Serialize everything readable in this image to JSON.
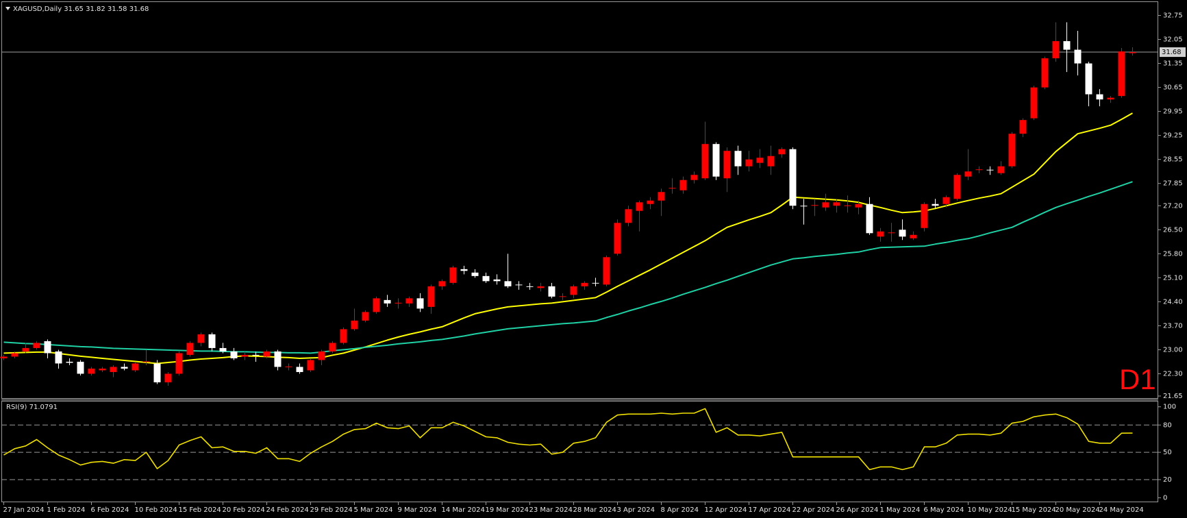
{
  "chart_data": [
    {
      "type": "candlestick",
      "title": "XAGUSD,Daily  31.65 31.82 31.58 31.68",
      "annotation": "D1",
      "up_color": "#ff0000",
      "down_color": "#ffffff",
      "categories": [
        "27 Jan 2024",
        null,
        null,
        null,
        "1 Feb 2024",
        null,
        null,
        null,
        "6 Feb 2024",
        null,
        null,
        null,
        "10 Feb 2024",
        null,
        null,
        null,
        "15 Feb 2024",
        null,
        null,
        null,
        "20 Feb 2024",
        null,
        null,
        null,
        "24 Feb 2024",
        null,
        null,
        null,
        "29 Feb 2024",
        null,
        null,
        null,
        "5 Mar 2024",
        null,
        null,
        null,
        "9 Mar 2024",
        null,
        null,
        null,
        "14 Mar 2024",
        null,
        null,
        null,
        "19 Mar 2024",
        null,
        null,
        null,
        "23 Mar 2024",
        null,
        null,
        null,
        "28 Mar 2024",
        null,
        null,
        null,
        "3 Apr 2024",
        null,
        null,
        null,
        "8 Apr 2024",
        null,
        null,
        null,
        "12 Apr 2024",
        null,
        null,
        null,
        "17 Apr 2024",
        null,
        null,
        null,
        "22 Apr 2024",
        null,
        null,
        null,
        "26 Apr 2024",
        null,
        null,
        null,
        "1 May 2024",
        null,
        null,
        null,
        "6 May 2024",
        null,
        null,
        null,
        "10 May 2024",
        null,
        null,
        null,
        "15 May 2024",
        null,
        null,
        null,
        "20 May 2024",
        null,
        null,
        null,
        "24 May 2024",
        null,
        null,
        null
      ],
      "open": [
        22.75,
        22.8,
        22.95,
        23.05,
        23.25,
        22.95,
        22.65,
        22.65,
        22.3,
        22.4,
        22.35,
        22.5,
        22.4,
        22.65,
        22.6,
        22.05,
        22.3,
        22.85,
        23.2,
        23.45,
        23.05,
        22.95,
        22.8,
        22.85,
        22.8,
        22.95,
        22.5,
        22.5,
        22.4,
        22.7,
        22.95,
        23.2,
        23.6,
        23.85,
        24.1,
        24.45,
        24.35,
        24.35,
        24.5,
        24.25,
        24.85,
        24.95,
        25.35,
        25.25,
        25.15,
        25.05,
        25.0,
        24.9,
        24.85,
        24.8,
        24.85,
        24.55,
        24.6,
        24.85,
        24.95,
        24.9,
        25.8,
        26.7,
        27.05,
        27.25,
        27.35,
        27.7,
        27.65,
        27.95,
        28.0,
        29.0,
        28.0,
        28.8,
        28.35,
        28.45,
        28.35,
        28.7,
        28.85,
        27.2,
        27.2,
        27.15,
        27.2,
        27.2,
        27.15,
        27.25,
        26.3,
        26.4,
        26.5,
        26.25,
        26.55,
        27.25,
        27.25,
        27.4,
        28.05,
        28.25,
        28.25,
        28.15,
        28.35,
        29.3,
        29.75,
        30.65,
        31.5,
        32.0,
        31.75,
        31.35,
        30.45,
        30.3,
        30.4,
        31.65
      ],
      "high": [
        22.85,
        22.95,
        23.2,
        23.25,
        23.3,
        23.0,
        22.75,
        22.7,
        22.5,
        22.5,
        22.55,
        22.6,
        22.65,
        23.0,
        22.7,
        22.35,
        22.95,
        23.25,
        23.5,
        23.5,
        23.2,
        23.05,
        22.95,
        22.95,
        23.0,
        23.0,
        22.6,
        22.6,
        22.75,
        23.0,
        23.25,
        23.65,
        24.2,
        24.15,
        24.55,
        24.6,
        24.5,
        24.55,
        24.65,
        24.9,
        25.05,
        25.45,
        25.45,
        25.35,
        25.25,
        25.2,
        25.8,
        25.0,
        24.95,
        24.95,
        24.95,
        24.65,
        24.9,
        25.0,
        25.1,
        25.75,
        26.8,
        27.2,
        27.35,
        27.45,
        27.7,
        28.0,
        28.05,
        28.2,
        29.65,
        29.05,
        28.9,
        28.95,
        28.8,
        28.85,
        28.95,
        28.9,
        28.9,
        27.4,
        27.4,
        27.55,
        27.4,
        27.5,
        27.35,
        27.45,
        26.55,
        26.7,
        26.8,
        26.45,
        27.3,
        27.4,
        27.5,
        28.15,
        28.85,
        28.35,
        28.35,
        28.5,
        29.35,
        29.75,
        30.7,
        31.55,
        32.55,
        32.55,
        32.3,
        31.4,
        30.6,
        30.4,
        31.8,
        31.82
      ],
      "low": [
        22.7,
        22.75,
        22.9,
        23.0,
        22.75,
        22.45,
        22.55,
        22.25,
        22.25,
        22.35,
        22.2,
        22.4,
        22.35,
        22.55,
        22.0,
        21.95,
        22.25,
        22.8,
        23.1,
        22.95,
        22.9,
        22.7,
        22.7,
        22.65,
        22.75,
        22.4,
        22.4,
        22.3,
        22.35,
        22.55,
        22.9,
        23.15,
        23.55,
        23.8,
        24.05,
        24.25,
        24.2,
        24.25,
        24.1,
        24.05,
        24.75,
        24.9,
        25.2,
        25.1,
        24.95,
        24.9,
        24.8,
        24.75,
        24.75,
        24.7,
        24.5,
        24.45,
        24.5,
        24.75,
        24.85,
        24.85,
        25.75,
        26.6,
        26.45,
        27.1,
        26.9,
        27.55,
        27.55,
        27.85,
        27.95,
        27.95,
        27.6,
        28.1,
        28.2,
        28.3,
        28.1,
        28.6,
        27.1,
        26.65,
        26.9,
        27.05,
        27.0,
        27.0,
        26.95,
        26.35,
        26.15,
        26.15,
        26.2,
        26.2,
        26.45,
        27.1,
        27.15,
        27.35,
        27.95,
        28.15,
        28.1,
        28.1,
        28.3,
        29.2,
        29.7,
        30.6,
        31.4,
        31.1,
        31.0,
        30.1,
        30.1,
        30.2,
        30.35,
        31.58
      ],
      "close": [
        22.8,
        22.9,
        23.05,
        23.2,
        22.9,
        22.6,
        22.62,
        22.3,
        22.45,
        22.45,
        22.5,
        22.45,
        22.6,
        22.66,
        22.05,
        22.3,
        22.9,
        23.2,
        23.45,
        23.05,
        22.95,
        22.75,
        22.85,
        22.83,
        22.95,
        22.5,
        22.51,
        22.35,
        22.7,
        22.95,
        23.2,
        23.6,
        23.85,
        24.1,
        24.5,
        24.35,
        24.37,
        24.5,
        24.2,
        24.85,
        25.0,
        25.4,
        25.3,
        25.15,
        25.0,
        25.0,
        24.85,
        24.88,
        24.84,
        24.85,
        24.55,
        24.56,
        24.85,
        24.95,
        24.93,
        25.7,
        26.7,
        27.1,
        27.3,
        27.35,
        27.6,
        27.72,
        27.95,
        28.1,
        29.0,
        28.05,
        28.8,
        28.35,
        28.55,
        28.6,
        28.65,
        28.85,
        27.2,
        27.18,
        27.22,
        27.3,
        27.3,
        27.21,
        27.25,
        26.4,
        26.45,
        26.42,
        26.3,
        26.35,
        27.25,
        27.2,
        27.45,
        28.1,
        28.2,
        28.26,
        28.24,
        28.35,
        29.3,
        29.7,
        30.65,
        31.5,
        32.0,
        31.75,
        31.35,
        30.45,
        30.3,
        30.35,
        31.7,
        31.68
      ],
      "series": [
        {
          "color": "#ffff00",
          "values": [
            22.9,
            22.91,
            22.92,
            22.93,
            22.93,
            22.89,
            22.85,
            22.81,
            22.78,
            22.75,
            22.72,
            22.69,
            22.66,
            22.63,
            22.6,
            22.63,
            22.66,
            22.7,
            22.73,
            22.75,
            22.77,
            22.8,
            22.82,
            22.81,
            22.8,
            22.78,
            22.77,
            22.75,
            22.76,
            22.77,
            22.84,
            22.9,
            22.99,
            23.08,
            23.18,
            23.28,
            23.37,
            23.45,
            23.52,
            23.6,
            23.67,
            23.8,
            23.93,
            24.05,
            24.12,
            24.19,
            24.25,
            24.28,
            24.31,
            24.34,
            24.36,
            24.4,
            24.44,
            24.48,
            24.52,
            24.68,
            24.85,
            25.01,
            25.17,
            25.33,
            25.5,
            25.67,
            25.84,
            26.01,
            26.18,
            26.38,
            26.57,
            26.68,
            26.79,
            26.89,
            27.0,
            27.22,
            27.45,
            27.43,
            27.41,
            27.39,
            27.37,
            27.34,
            27.3,
            27.22,
            27.15,
            27.07,
            27.0,
            27.02,
            27.05,
            27.12,
            27.2,
            27.28,
            27.35,
            27.42,
            27.48,
            27.55,
            27.74,
            27.93,
            28.12,
            28.45,
            28.78,
            29.04,
            29.3,
            29.38,
            29.46,
            29.55,
            29.72,
            29.9
          ]
        },
        {
          "color": "#1fd1a5",
          "values": [
            23.22,
            23.2,
            23.18,
            23.17,
            23.15,
            23.13,
            23.11,
            23.09,
            23.08,
            23.06,
            23.04,
            23.03,
            23.02,
            23.01,
            23.0,
            22.99,
            22.98,
            22.97,
            22.96,
            22.96,
            22.95,
            22.94,
            22.94,
            22.93,
            22.92,
            22.92,
            22.91,
            22.91,
            22.9,
            22.93,
            22.97,
            23.0,
            23.03,
            23.07,
            23.1,
            23.13,
            23.17,
            23.2,
            23.23,
            23.27,
            23.3,
            23.35,
            23.4,
            23.46,
            23.51,
            23.56,
            23.61,
            23.64,
            23.67,
            23.7,
            23.73,
            23.76,
            23.78,
            23.81,
            23.84,
            23.94,
            24.03,
            24.13,
            24.22,
            24.32,
            24.41,
            24.51,
            24.62,
            24.72,
            24.82,
            24.93,
            25.03,
            25.14,
            25.25,
            25.36,
            25.47,
            25.56,
            25.65,
            25.68,
            25.72,
            25.75,
            25.78,
            25.82,
            25.85,
            25.92,
            25.98,
            25.99,
            26.0,
            26.01,
            26.02,
            26.08,
            26.13,
            26.19,
            26.24,
            26.32,
            26.41,
            26.49,
            26.57,
            26.72,
            26.86,
            27.01,
            27.15,
            27.26,
            27.36,
            27.47,
            27.57,
            27.68,
            27.79,
            27.9
          ]
        }
      ],
      "last_price": 31.68,
      "ylim": [
        21.61,
        33.08
      ],
      "yticks": [
        21.65,
        {
          "value": 22.3,
          "label": "22.30"
        },
        {
          "value": 23,
          "label": "23.00"
        },
        {
          "value": 23.7,
          "label": "23.70"
        },
        {
          "value": 24.4,
          "label": "24.40"
        },
        {
          "value": 25.1,
          "label": "25.10"
        },
        {
          "value": 25.8,
          "label": "25.80"
        },
        {
          "value": 26.5,
          "label": "26.50"
        },
        {
          "value": 27.2,
          "label": "27.20"
        },
        27.85,
        28.55,
        29.25,
        29.95,
        30.65,
        31.35,
        32.05,
        32.75
      ]
    },
    {
      "type": "line",
      "title": "RSI(9) 71.0791",
      "series": [
        {
          "color": "#f0e000",
          "values": [
            47,
            54,
            57,
            64,
            55,
            47,
            42,
            36,
            39,
            40,
            38,
            42,
            41,
            50,
            32,
            41,
            58,
            63,
            67,
            55,
            56,
            51,
            51,
            49,
            55,
            43,
            43,
            40,
            49,
            56,
            62,
            70,
            75,
            76,
            82,
            77,
            76,
            79,
            66,
            77,
            77,
            83,
            79,
            73,
            67,
            66,
            61,
            59,
            58,
            59,
            48,
            50,
            60,
            62,
            66,
            83,
            91,
            92,
            92,
            92,
            93,
            92,
            93,
            93,
            98,
            72,
            77,
            69,
            69,
            68,
            70,
            72,
            45,
            45,
            45,
            45,
            45,
            45,
            45,
            31,
            34,
            34,
            31,
            34,
            56,
            56,
            60,
            69,
            70,
            70,
            69,
            71,
            82,
            84,
            89,
            91,
            92,
            88,
            81,
            62,
            60,
            60,
            71,
            71.0791
          ]
        }
      ],
      "levels": [
        20,
        50,
        80
      ],
      "ylim": [
        -4.1,
        105.8
      ],
      "yticks": [
        0,
        20,
        50,
        80,
        100
      ]
    }
  ]
}
